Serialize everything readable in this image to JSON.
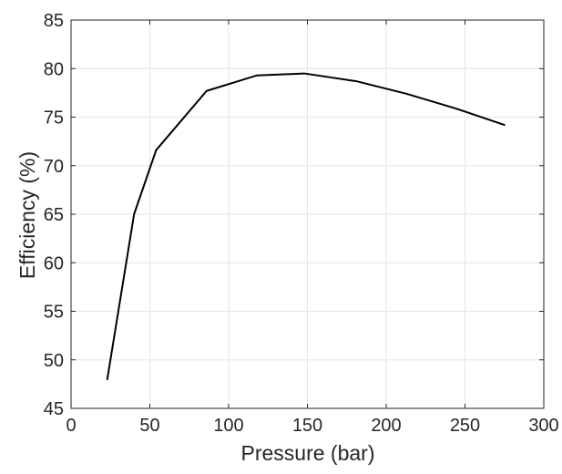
{
  "chart_data": {
    "type": "line",
    "title": "",
    "xlabel": "Pressure (bar)",
    "ylabel": "Efficiency (%)",
    "xlim": [
      0,
      300
    ],
    "ylim": [
      45,
      85
    ],
    "xticks": [
      0,
      50,
      100,
      150,
      200,
      250,
      300
    ],
    "yticks": [
      45,
      50,
      55,
      60,
      65,
      70,
      75,
      80,
      85
    ],
    "grid": true,
    "series": [
      {
        "color": "#000000",
        "x": [
          23,
          40,
          54,
          86,
          118,
          148,
          181,
          213,
          244,
          275
        ],
        "y": [
          48.0,
          65.0,
          71.6,
          77.7,
          79.3,
          79.5,
          78.7,
          77.4,
          75.9,
          74.2
        ]
      }
    ]
  }
}
